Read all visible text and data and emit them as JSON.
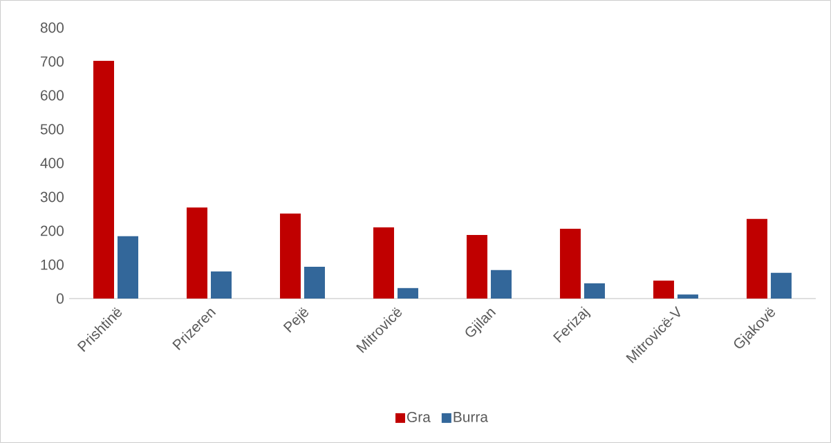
{
  "chart_data": {
    "type": "bar",
    "categories": [
      "Prishtinë",
      "Prizeren",
      "Pejë",
      "Mitrovicë",
      "Gjilan",
      "Ferizaj",
      "Mitrovicë-V",
      "Gjakovë"
    ],
    "series": [
      {
        "name": "Gra",
        "color": "#c00000",
        "values": [
          702,
          269,
          251,
          210,
          188,
          206,
          53,
          235
        ]
      },
      {
        "name": "Burra",
        "color": "#33679a",
        "values": [
          184,
          80,
          94,
          31,
          84,
          45,
          12,
          76
        ]
      }
    ],
    "ylim": [
      0,
      800
    ],
    "yticks": [
      0,
      100,
      200,
      300,
      400,
      500,
      600,
      700,
      800
    ],
    "legend": "bottom"
  }
}
